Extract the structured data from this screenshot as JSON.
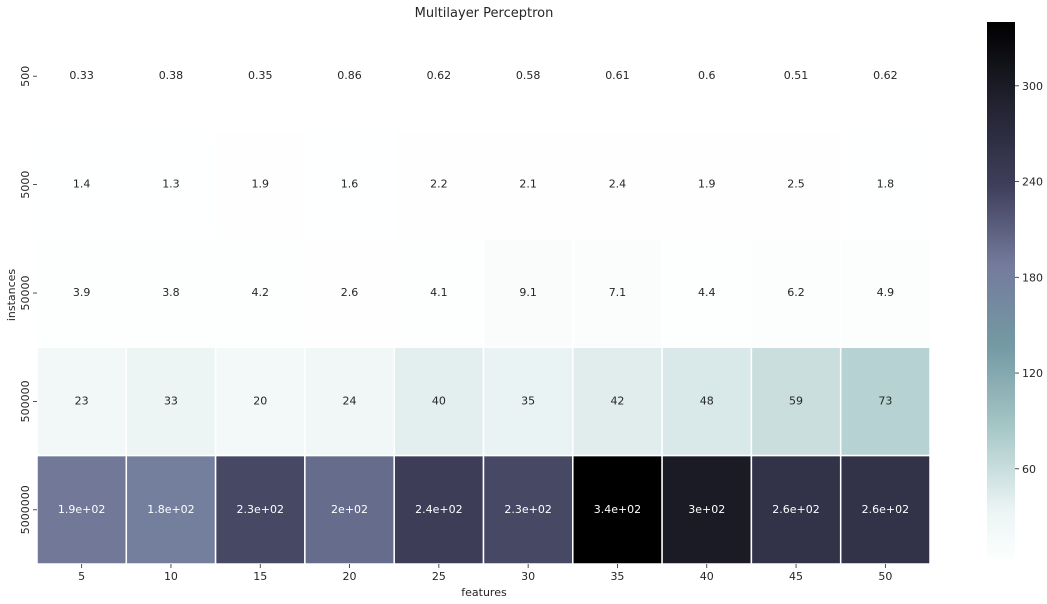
{
  "chart_data": {
    "type": "heatmap",
    "title": "Multilayer Perceptron",
    "xlabel": "features",
    "ylabel": "instances",
    "x_categories": [
      "5",
      "10",
      "15",
      "20",
      "25",
      "30",
      "35",
      "40",
      "45",
      "50"
    ],
    "y_categories": [
      "500",
      "5000",
      "50000",
      "500000",
      "5000000"
    ],
    "values": [
      [
        0.33,
        0.38,
        0.35,
        0.86,
        0.62,
        0.58,
        0.61,
        0.6,
        0.51,
        0.62
      ],
      [
        1.4,
        1.3,
        1.9,
        1.6,
        2.2,
        2.1,
        2.4,
        1.9,
        2.5,
        1.8
      ],
      [
        3.9,
        3.8,
        4.2,
        2.6,
        4.1,
        9.1,
        7.1,
        4.4,
        6.2,
        4.9
      ],
      [
        23,
        33,
        20,
        24,
        40,
        35,
        42,
        48,
        59,
        73
      ],
      [
        190,
        180,
        230,
        200,
        240,
        230,
        340,
        300,
        260,
        260
      ]
    ],
    "labels": [
      [
        "0.33",
        "0.38",
        "0.35",
        "0.86",
        "0.62",
        "0.58",
        "0.61",
        "0.6",
        "0.51",
        "0.62"
      ],
      [
        "1.4",
        "1.3",
        "1.9",
        "1.6",
        "2.2",
        "2.1",
        "2.4",
        "1.9",
        "2.5",
        "1.8"
      ],
      [
        "3.9",
        "3.8",
        "4.2",
        "2.6",
        "4.1",
        "9.1",
        "7.1",
        "4.4",
        "6.2",
        "4.9"
      ],
      [
        "23",
        "33",
        "20",
        "24",
        "40",
        "35",
        "42",
        "48",
        "59",
        "73"
      ],
      [
        "1.9e+02",
        "1.8e+02",
        "2.3e+02",
        "2e+02",
        "2.4e+02",
        "2.3e+02",
        "3.4e+02",
        "3e+02",
        "2.6e+02",
        "2.6e+02"
      ]
    ],
    "colorbar": {
      "ticks": [
        "60",
        "120",
        "180",
        "240",
        "300"
      ],
      "tick_values": [
        60,
        120,
        180,
        240,
        300
      ],
      "vmin": 0.33,
      "vmax": 340
    },
    "colormap": "bone_r",
    "grid": false,
    "colors": {
      "low": "#ffffff",
      "mid_light": "#a7c7c7",
      "mid": "#747b9c",
      "dark": "#3e3e5a",
      "high": "#000000"
    }
  }
}
